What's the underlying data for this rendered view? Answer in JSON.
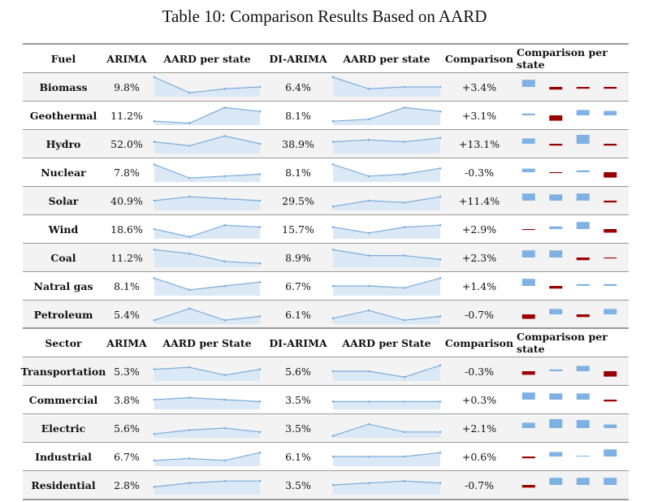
{
  "caption": "Table 10: Comparison Results Based on AARD",
  "colors": {
    "spark_line": "#7aaedb",
    "spark_fill": "#dbe8f6",
    "pos_bar": "#7fb1e4",
    "neg_bar": "#990000"
  },
  "sections": [
    {
      "headers": [
        "Fuel",
        "ARIMA",
        "AARD per state",
        "DI-ARIMA",
        "AARD per state",
        "Comparison",
        "Comparison per state"
      ],
      "rows": [
        {
          "name": "Biomass",
          "arima": "9.8%",
          "di_arima": "6.4%",
          "comparison": "+3.4%",
          "spark_arima": [
            10,
            2,
            4,
            5
          ],
          "spark_di": [
            10,
            4,
            5,
            5
          ],
          "bars": [
            4,
            -1.5,
            -1,
            -1
          ]
        },
        {
          "name": "Geothermal",
          "arima": "11.2%",
          "di_arima": "8.1%",
          "comparison": "+3.1%",
          "spark_arima": [
            2,
            1,
            9,
            7
          ],
          "spark_di": [
            2,
            3,
            9,
            7
          ],
          "bars": [
            1,
            -3,
            3,
            2.5
          ]
        },
        {
          "name": "Hydro",
          "arima": "52.0%",
          "di_arima": "38.9%",
          "comparison": "+13.1%",
          "spark_arima": [
            6,
            4,
            9,
            5
          ],
          "spark_di": [
            6,
            7,
            6,
            8
          ],
          "bars": [
            3,
            -1,
            5,
            -1
          ]
        },
        {
          "name": "Nuclear",
          "arima": "7.8%",
          "di_arima": "8.1%",
          "comparison": "-0.3%",
          "spark_arima": [
            9,
            2,
            3,
            4
          ],
          "spark_di": [
            9,
            3,
            4,
            7
          ],
          "bars": [
            2,
            -0.5,
            1,
            -3
          ]
        },
        {
          "name": "Solar",
          "arima": "40.9%",
          "di_arima": "29.5%",
          "comparison": "+11.4%",
          "spark_arima": [
            5,
            7,
            6,
            5
          ],
          "spark_di": [
            2,
            5,
            4,
            7
          ],
          "bars": [
            4,
            3.5,
            4,
            -1
          ]
        },
        {
          "name": "Wind",
          "arima": "18.6%",
          "di_arima": "15.7%",
          "comparison": "+2.9%",
          "spark_arima": [
            5,
            1,
            7,
            6
          ],
          "spark_di": [
            6,
            3,
            6,
            7
          ],
          "bars": [
            -0.5,
            1.5,
            4,
            -2
          ]
        },
        {
          "name": "Coal",
          "arima": "11.2%",
          "di_arima": "8.9%",
          "comparison": "+2.3%",
          "spark_arima": [
            9,
            7,
            3,
            2
          ],
          "spark_di": [
            9,
            6,
            6,
            4
          ],
          "bars": [
            4,
            4,
            -1.5,
            -0.5
          ]
        },
        {
          "name": "Natral gas",
          "arima": "8.1%",
          "di_arima": "6.7%",
          "comparison": "+1.4%",
          "spark_arima": [
            9,
            3,
            5,
            7
          ],
          "spark_di": [
            5,
            5,
            4,
            9
          ],
          "bars": [
            4,
            -1.5,
            1,
            1
          ]
        },
        {
          "name": "Petroleum",
          "arima": "5.4%",
          "di_arima": "6.1%",
          "comparison": "-0.7%",
          "spark_arima": [
            2,
            8,
            2,
            4
          ],
          "spark_di": [
            3,
            7,
            2,
            4
          ],
          "bars": [
            -2.5,
            3,
            -1.5,
            3
          ]
        }
      ]
    },
    {
      "headers": [
        "Sector",
        "ARIMA",
        "AARD per State",
        "DI-ARIMA",
        "AARD per State",
        "Comparison",
        "Comparison per state"
      ],
      "rows": [
        {
          "name": "Transportation",
          "arima": "5.3%",
          "di_arima": "5.6%",
          "comparison": "-0.3%",
          "spark_arima": [
            6,
            7,
            3,
            6
          ],
          "spark_di": [
            5,
            5,
            2,
            8
          ],
          "bars": [
            -2,
            1,
            3,
            -3
          ]
        },
        {
          "name": "Commercial",
          "arima": "3.8%",
          "di_arima": "3.5%",
          "comparison": "+0.3%",
          "spark_arima": [
            5,
            6,
            5,
            4
          ],
          "spark_di": [
            4,
            4,
            4,
            4
          ],
          "bars": [
            4,
            3.5,
            3.5,
            -1
          ]
        },
        {
          "name": "Electric",
          "arima": "5.6%",
          "di_arima": "3.5%",
          "comparison": "+2.1%",
          "spark_arima": [
            2,
            4,
            5,
            3
          ],
          "spark_di": [
            1,
            7,
            3,
            3
          ],
          "bars": [
            3,
            5,
            4.5,
            2
          ]
        },
        {
          "name": "Industrial",
          "arima": "6.7%",
          "di_arima": "6.1%",
          "comparison": "+0.6%",
          "spark_arima": [
            3,
            4,
            3,
            7
          ],
          "spark_di": [
            5,
            5,
            5,
            7
          ],
          "bars": [
            -1,
            2.5,
            0.3,
            4
          ]
        },
        {
          "name": "Residential",
          "arima": "2.8%",
          "di_arima": "3.5%",
          "comparison": "-0.7%",
          "spark_arima": [
            4,
            6,
            7,
            7
          ],
          "spark_di": [
            5,
            6,
            7,
            6
          ],
          "bars": [
            -1.5,
            4,
            4,
            4
          ]
        }
      ]
    }
  ]
}
